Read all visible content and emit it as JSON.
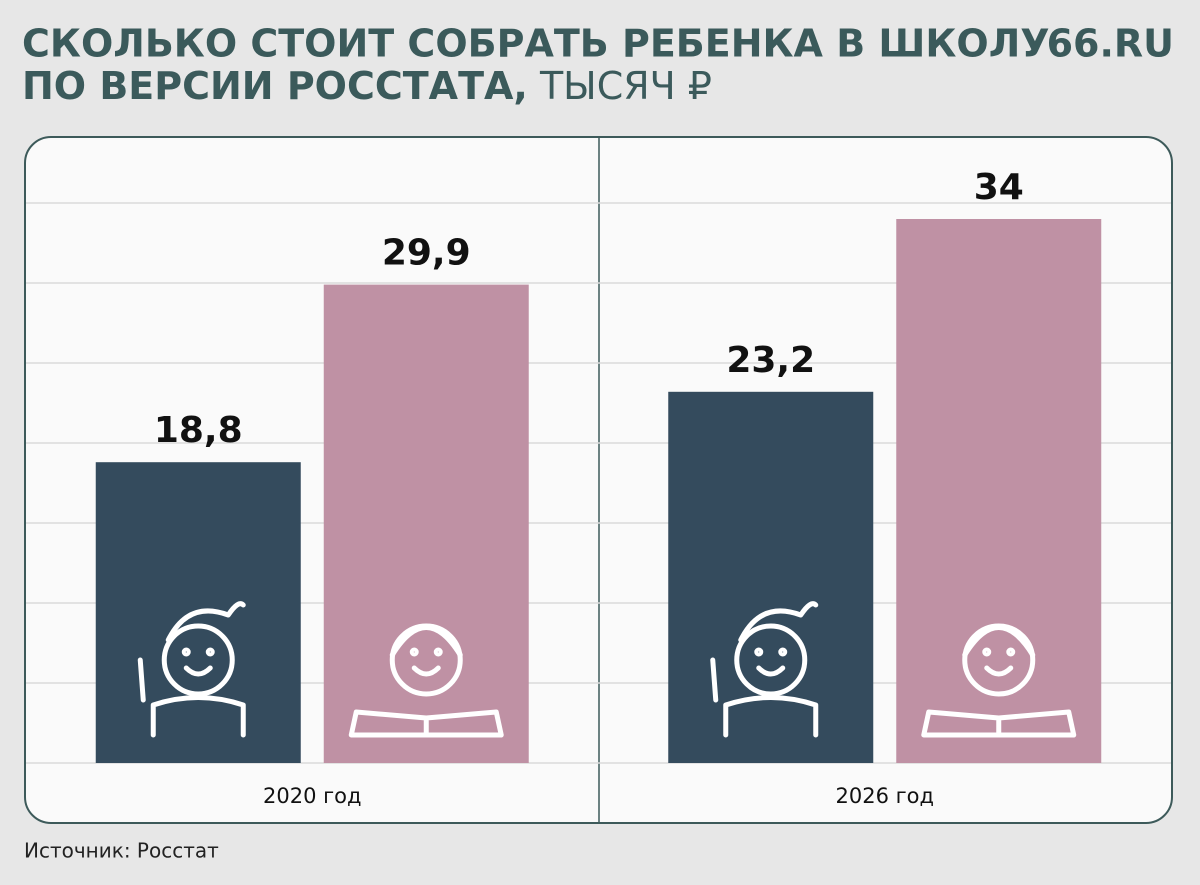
{
  "chart_data": {
    "type": "bar",
    "title": "СКОЛЬКО СТОИТ СОБРАТЬ РЕБЕНКА В ШКОЛУ",
    "title_line2": "ПО ВЕРСИИ РОССТАТА,",
    "unit": "ТЫСЯЧ ₽",
    "brand": "66.RU",
    "source": "Источник: Росстат",
    "categories": [
      "2020 год",
      "2026 год"
    ],
    "series": [
      {
        "color": "#344b5d",
        "values": [
          18.8,
          23.2
        ],
        "value_labels": [
          "18,8",
          "23,2"
        ]
      },
      {
        "color": "#bf91a4",
        "values": [
          29.9,
          34
        ],
        "value_labels": [
          "29,9",
          "34"
        ]
      }
    ],
    "ylim": [
      0,
      39
    ],
    "yticks": [
      0,
      5,
      10,
      15,
      20,
      25,
      30,
      35
    ],
    "grid": true
  }
}
